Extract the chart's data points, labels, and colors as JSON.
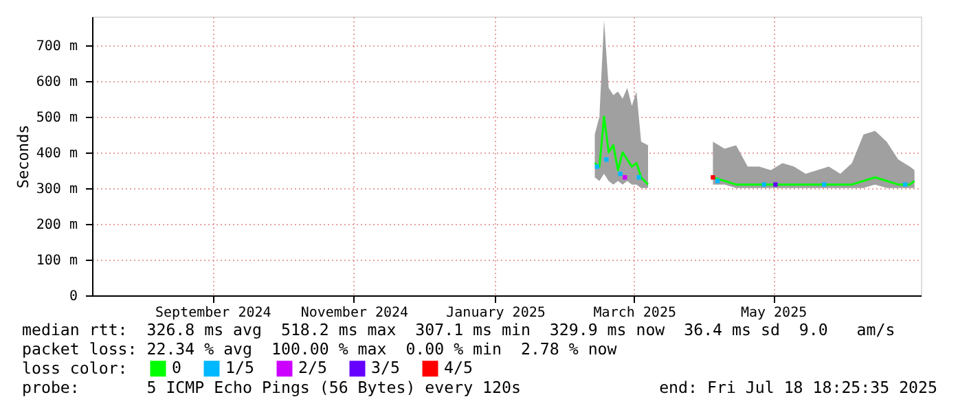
{
  "chart_data": {
    "type": "line",
    "ylabel": "Seconds",
    "xlim": [
      "2024-07-26",
      "2025-07-18T18:25"
    ],
    "xticks": [
      {
        "value": "2024-09-16",
        "label": "September 2024"
      },
      {
        "value": "2024-11-16",
        "label": "November 2024"
      },
      {
        "value": "2025-01-16",
        "label": "January 2025"
      },
      {
        "value": "2025-03-17",
        "label": "March 2025"
      },
      {
        "value": "2025-05-16",
        "label": "May 2025"
      }
    ],
    "ylim": [
      0,
      780
    ],
    "yticks": [
      0,
      {
        "value": 100,
        "label": "100 m"
      },
      {
        "value": 200,
        "label": "200 m"
      },
      {
        "value": 300,
        "label": "300 m"
      },
      {
        "value": 400,
        "label": "400 m"
      },
      {
        "value": 500,
        "label": "500 m"
      },
      {
        "value": 600,
        "label": "600 m"
      },
      {
        "value": 700,
        "label": "700 m"
      }
    ],
    "grid": true,
    "legend": "bottom",
    "legend_title": "loss color:",
    "series": [
      {
        "name": "0",
        "color": "#00ff00",
        "x": [
          "2025-02-28",
          "2025-03-02",
          "2025-03-04",
          "2025-03-06",
          "2025-03-08",
          "2025-03-10",
          "2025-03-12",
          "2025-03-14",
          "2025-03-16",
          "2025-03-18",
          "2025-03-20",
          "2025-03-23",
          "2025-04-05",
          "2025-04-20",
          "2025-04-25",
          "2025-04-30",
          "2025-05-05",
          "2025-05-10",
          "2025-05-15",
          "2025-05-20",
          "2025-05-25",
          "2025-05-30",
          "2025-06-04",
          "2025-06-09",
          "2025-06-14",
          "2025-06-19",
          "2025-06-24",
          "2025-06-29",
          "2025-07-04",
          "2025-07-09",
          "2025-07-14",
          "2025-07-16"
        ],
        "values": [
          370,
          360,
          500,
          400,
          420,
          350,
          400,
          380,
          360,
          370,
          330,
          310,
          null,
          330,
          320,
          310,
          310,
          310,
          310,
          310,
          310,
          310,
          310,
          310,
          310,
          310,
          320,
          330,
          320,
          310,
          310,
          320
        ],
        "lower": [
          330,
          320,
          340,
          320,
          310,
          320,
          310,
          320,
          310,
          310,
          300,
          300,
          null,
          310,
          310,
          300,
          300,
          300,
          300,
          300,
          300,
          300,
          300,
          300,
          300,
          300,
          300,
          310,
          300,
          300,
          300,
          300
        ],
        "upper": [
          450,
          500,
          770,
          580,
          560,
          570,
          550,
          580,
          530,
          570,
          430,
          420,
          null,
          430,
          410,
          420,
          360,
          360,
          350,
          370,
          360,
          340,
          350,
          360,
          340,
          370,
          450,
          460,
          430,
          380,
          360,
          350
        ]
      },
      {
        "name": "1/5",
        "type": "scatter",
        "color": "#00b8ff",
        "x": [
          "2025-03-01",
          "2025-03-05",
          "2025-03-11",
          "2025-03-19",
          "2025-04-22",
          "2025-05-12",
          "2025-06-07",
          "2025-07-12"
        ],
        "values": [
          360,
          380,
          340,
          330,
          320,
          310,
          310,
          310
        ]
      },
      {
        "name": "2/5",
        "type": "scatter",
        "color": "#cc00ff",
        "x": [
          "2025-03-13"
        ],
        "values": [
          330
        ]
      },
      {
        "name": "3/5",
        "type": "scatter",
        "color": "#6600ff",
        "x": [
          "2025-05-17"
        ],
        "values": [
          310
        ]
      },
      {
        "name": "4/5",
        "type": "scatter",
        "color": "#ff0000",
        "x": [
          "2025-04-20"
        ],
        "values": [
          330
        ]
      }
    ],
    "annotations": [
      "median rtt:  326.8 ms avg  518.2 ms max  307.1 ms min  329.9 ms now  36.4 ms sd  9.0   am/s",
      "packet loss: 22.34 % avg  100.00 % max  0.00 % min  2.78 % now",
      "probe:       5 ICMP Echo Pings (56 Bytes) every 120s",
      "end: Fri Jul 18 18:25:35 2025"
    ]
  }
}
